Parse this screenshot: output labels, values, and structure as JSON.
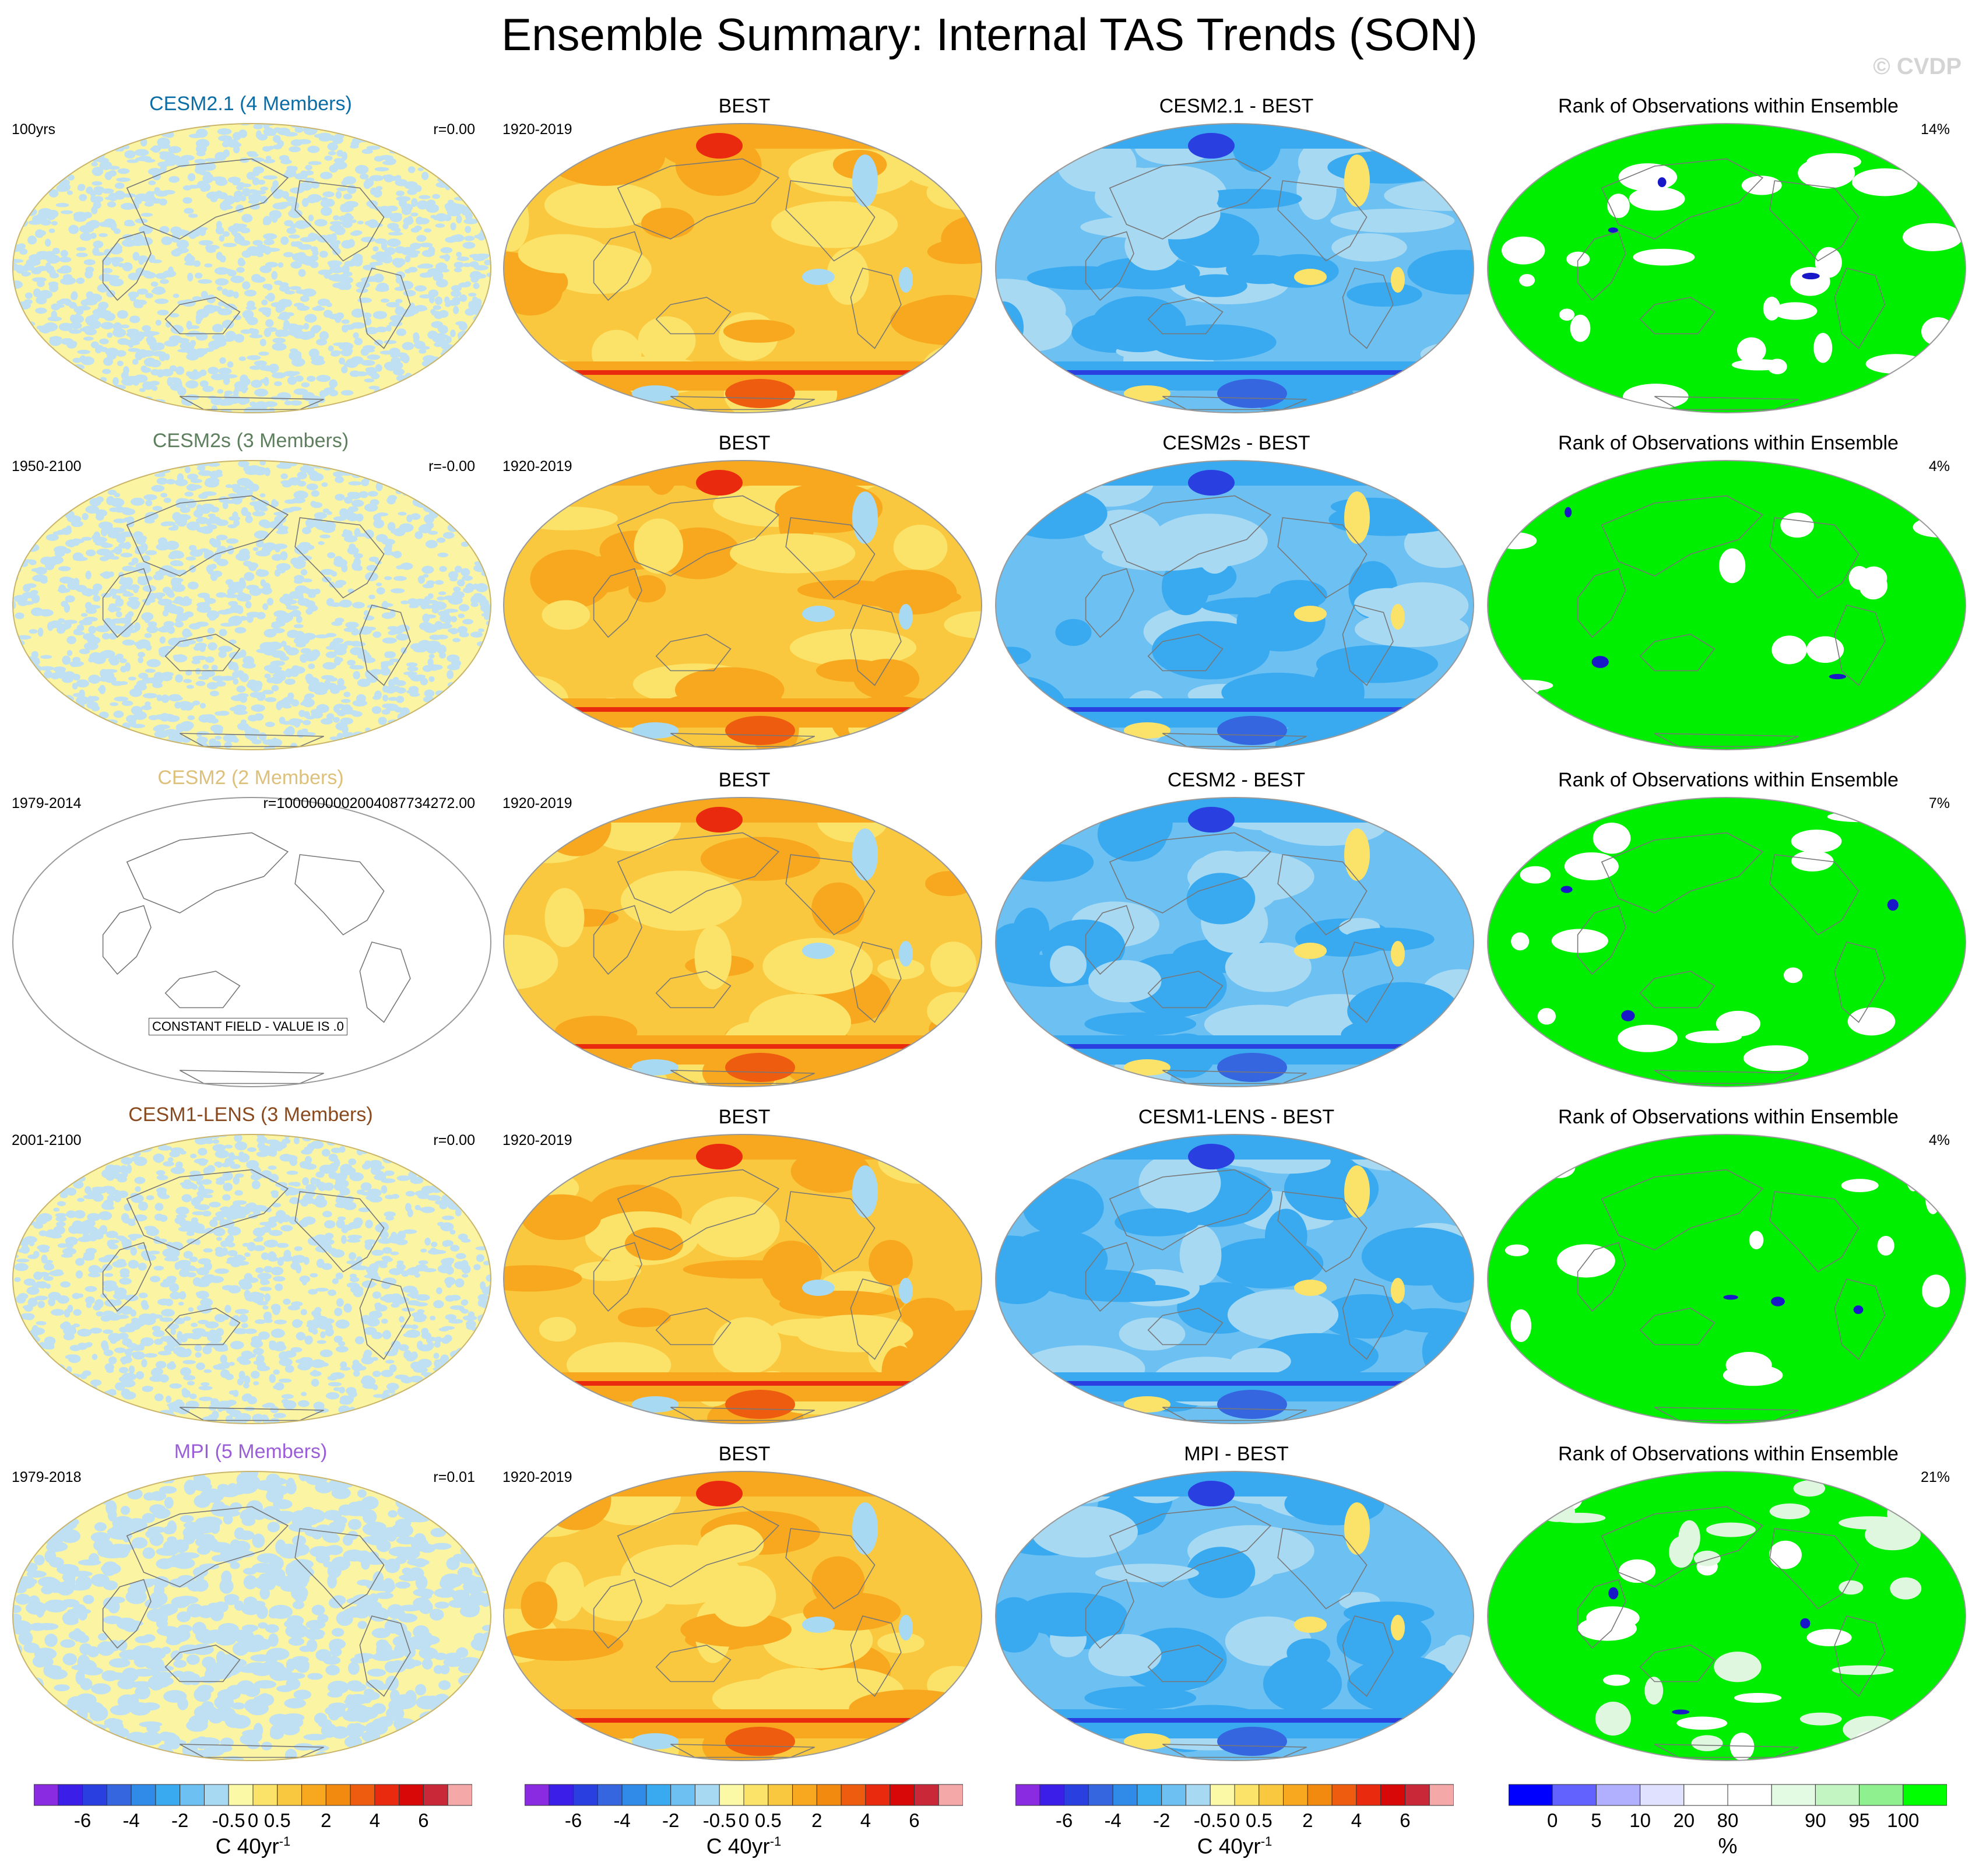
{
  "title": "Ensemble Summary: Internal TAS Trends (SON)",
  "copyright": "© CVDP",
  "rows": [
    {
      "model": "CESM2.1 (4 Members)",
      "model_color": "#0b6da6",
      "period": "100yrs",
      "r_text": "r=0.00",
      "obs_title": "BEST",
      "obs_period": "1920-2019",
      "diff_title": "CESM2.1 - BEST",
      "rank_title": "Rank of Observations within Ensemble",
      "rank_pct": "14%",
      "constant": false,
      "rank_white": 0.14
    },
    {
      "model": "CESM2s (3 Members)",
      "model_color": "#5e7f5e",
      "period": "1950-2100",
      "r_text": "r=-0.00",
      "obs_title": "BEST",
      "obs_period": "1920-2019",
      "diff_title": "CESM2s - BEST",
      "rank_title": "Rank of Observations within Ensemble",
      "rank_pct": "4%",
      "constant": false,
      "rank_white": 0.04
    },
    {
      "model": "CESM2 (2 Members)",
      "model_color": "#ddc07a",
      "period": "1979-2014",
      "r_text": "r=10000000020040877342​72.00",
      "obs_title": "BEST",
      "obs_period": "1920-2019",
      "diff_title": "CESM2 - BEST",
      "rank_title": "Rank of Observations within Ensemble",
      "rank_pct": "7%",
      "constant": true,
      "constant_text": "CONSTANT FIELD - VALUE IS .0",
      "rank_white": 0.07
    },
    {
      "model": "CESM1-LENS (3 Members)",
      "model_color": "#8b4a1e",
      "period": "2001-2100",
      "r_text": "r=0.00",
      "obs_title": "BEST",
      "obs_period": "1920-2019",
      "diff_title": "CESM1-LENS - BEST",
      "rank_title": "Rank of Observations within Ensemble",
      "rank_pct": "4%",
      "constant": false,
      "rank_white": 0.04
    },
    {
      "model": "MPI (5 Members)",
      "model_color": "#9a5fd6",
      "period": "1979-2018",
      "r_text": "r=0.01",
      "obs_title": "BEST",
      "obs_period": "1920-2019",
      "diff_title": "MPI - BEST",
      "rank_title": "Rank of Observations within Ensemble",
      "rank_pct": "21%",
      "constant": false,
      "rank_white": 0.21
    }
  ],
  "colorbar_trend": {
    "colors": [
      "#8a2be2",
      "#3b1ee8",
      "#2a3fe0",
      "#3566e0",
      "#2f8ae8",
      "#3aaaf0",
      "#6dc0f2",
      "#a8d9f2",
      "#fbf8a6",
      "#fbe36a",
      "#fac83e",
      "#f7a81e",
      "#f28a10",
      "#ee5c10",
      "#ea2a0e",
      "#d80808",
      "#c82838",
      "#f4a8a8"
    ],
    "ticks": [
      "-6",
      "-4",
      "-2",
      "-0.5",
      "0",
      "0.5",
      "2",
      "4",
      "6"
    ],
    "unit": "C 40yr",
    "unit_sup": "-1"
  },
  "colorbar_rank": {
    "colors": [
      "#0000ff",
      "#6262ff",
      "#b0b0ff",
      "#e0e0ff",
      "#ffffff",
      "#ffffff",
      "#e3fbe3",
      "#c3f5c3",
      "#8ef08e",
      "#00ff00"
    ],
    "ticks": [
      "0",
      "5",
      "10",
      "20",
      "80",
      "90",
      "95",
      "100"
    ],
    "unit": "%"
  },
  "colors": {
    "rank_fill": "#00ee00",
    "rank_low": "#1818c8",
    "noise_a": "#fbf5a3",
    "noise_b": "#bfe0f2"
  },
  "chart_data": {
    "type": "heatmap",
    "title": "Ensemble Summary: Internal TAS Trends (SON)",
    "panels_per_row": [
      "model ensemble trend",
      "BEST observed trend",
      "model minus BEST",
      "rank of observations within ensemble"
    ],
    "trend_levels_C_per_40yr": [
      -6,
      -4,
      -2,
      -0.5,
      0,
      0.5,
      2,
      4,
      6
    ],
    "rank_levels_percent": [
      0,
      5,
      10,
      20,
      80,
      90,
      95,
      100
    ],
    "rank_pct_outside_range": {
      "CESM2.1": 14,
      "CESM2s": 4,
      "CESM2": 7,
      "CESM1-LENS": 4,
      "MPI": 21
    },
    "pattern_correlation": {
      "CESM2.1": "0.00",
      "CESM2s": "-0.00",
      "CESM2": "1000000002004087734272.00",
      "CESM1-LENS": "0.00",
      "MPI": "0.01"
    }
  }
}
